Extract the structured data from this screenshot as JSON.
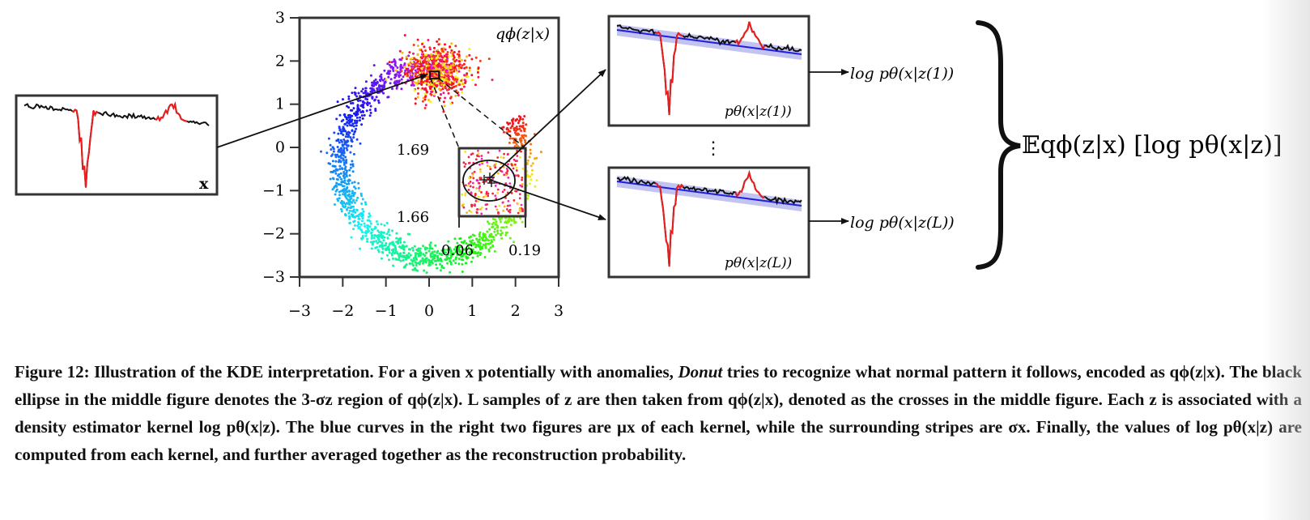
{
  "figure": {
    "left_panel": {
      "label": "x"
    },
    "scatter": {
      "label": "qϕ(z|x)",
      "x_ticks": [
        "−3",
        "−2",
        "−1",
        "0",
        "1",
        "2",
        "3"
      ],
      "y_ticks": [
        "3",
        "2",
        "1",
        "0",
        "−1",
        "−2",
        "−3"
      ],
      "xlim": [
        -3,
        3
      ],
      "ylim": [
        -3,
        3
      ],
      "zoom_box_center": [
        0.125,
        1.675
      ],
      "inset": {
        "x_ticks": [
          "0.06",
          "0.19"
        ],
        "y_ticks": [
          "1.69",
          "1.66"
        ]
      }
    },
    "top_right_panel": {
      "label": "pθ(x|z(1))",
      "arrow_label": "log pθ(x|z(1))"
    },
    "dots": "⋮",
    "bottom_right_panel": {
      "label": "pθ(x|z(L))",
      "arrow_label": "log pθ(x|z(L))"
    },
    "expectation": "𝔼qϕ(z|x) [log pθ(x|z)]"
  },
  "caption": {
    "lead": "Figure 12: Illustration of the KDE interpretation. For a given x potentially with anomalies,",
    "donut": "Donut",
    "rest": "tries to recognize what normal pattern it follows, encoded as qϕ(z|x). The black ellipse in the middle figure denotes the 3-σz region of qϕ(z|x). L samples of z are then taken from qϕ(z|x), denoted as the crosses in the middle figure. Each z is associated with a density estimator kernel log pθ(x|z). The blue curves in the right two figures are μx of each kernel, while the surrounding stripes are σx. Finally, the values of log pθ(x|z) are computed from each kernel, and further averaged together as the reconstruction probability."
  },
  "colors": {
    "anomaly": "#ee1c1c",
    "normal": "#111111",
    "mean": "#1f1fe0",
    "stripe": "#b9b9f0"
  }
}
